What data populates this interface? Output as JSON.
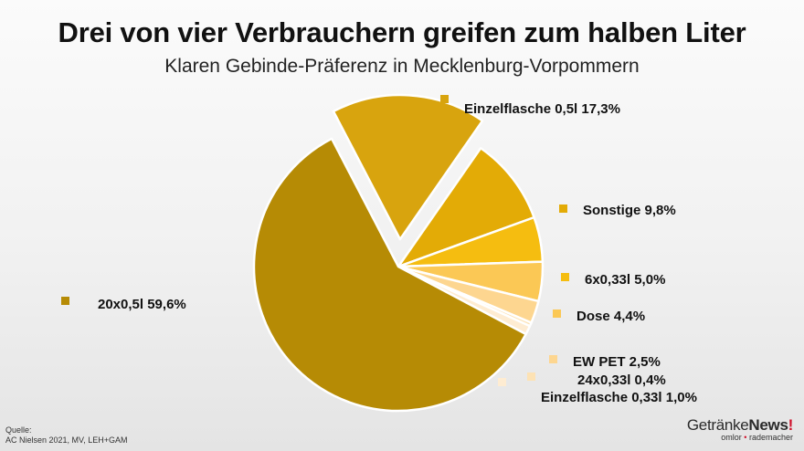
{
  "header": {
    "title": "Drei von vier Verbrauchern greifen zum halben Liter",
    "subtitle": "Klaren Gebinde-Präferenz in Mecklenburg-Vorpommern"
  },
  "source": {
    "label": "Quelle:",
    "text": "AC Nielsen 2021, MV, LEH+GAM"
  },
  "logo": {
    "brand_part1": "Getränke",
    "brand_part2": "News",
    "brand_mark": "!",
    "sub_part1": "omlor",
    "sub_dot": "•",
    "sub_part2": "rademacher",
    "accent_color": "#d0112b"
  },
  "chart_data": {
    "type": "pie",
    "title": "Drei von vier Verbrauchern greifen zum halben Liter",
    "subtitle": "Klaren Gebinde-Präferenz in Mecklenburg-Vorpommern",
    "exploded": [
      "Einzelflasche 0,5l"
    ],
    "slices": [
      {
        "label": "Einzelflasche 0,5l",
        "display": "Einzelflasche 0,5l 17,3%",
        "value": 17.3,
        "color": "#d8a40e"
      },
      {
        "label": "Sonstige",
        "display": "Sonstige 9,8%",
        "value": 9.8,
        "color": "#e3ab06"
      },
      {
        "label": "6x0,33l",
        "display": "6x0,33l 5,0%",
        "value": 5.0,
        "color": "#f5bd10"
      },
      {
        "label": "Dose",
        "display": "Dose 4,4%",
        "value": 4.4,
        "color": "#fbc855"
      },
      {
        "label": "EW PET",
        "display": "EW PET 2,5%",
        "value": 2.5,
        "color": "#fdd690"
      },
      {
        "label": "24x0,33l",
        "display": "24x0,33l 0,4%",
        "value": 0.4,
        "color": "#fde2b4"
      },
      {
        "label": "Einzelflasche 0,33l",
        "display": "Einzelflasche 0,33l 1,0%",
        "value": 1.0,
        "color": "#feecd2"
      },
      {
        "label": "20x0,5l",
        "display": "20x0,5l  59,6%",
        "value": 59.6,
        "color": "#b68b05"
      }
    ]
  }
}
